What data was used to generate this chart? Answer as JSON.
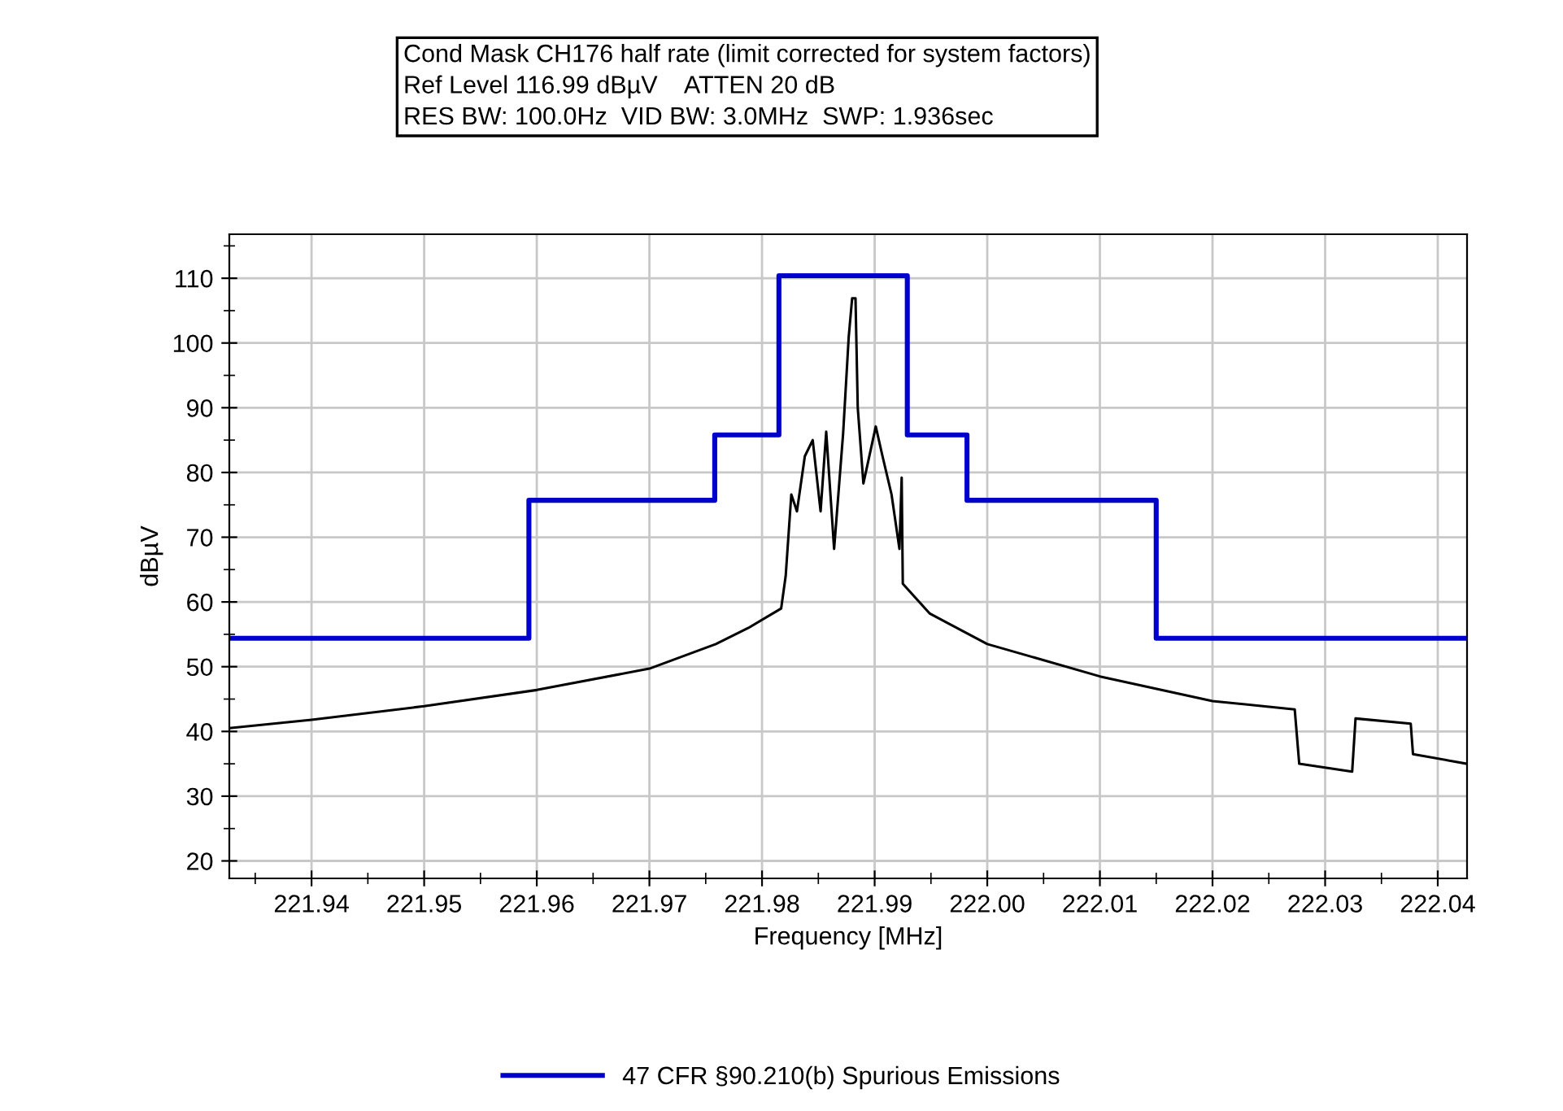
{
  "chart_data": {
    "type": "line",
    "title": "Cond Mask CH176 half rate (limit corrected for system factors)\nRef Level 116.99 dBµV    ATTEN 20 dB\nRES BW: 100.0Hz  VID BW: 3.0MHz  SWP: 1.936sec",
    "xlabel": "Frequency [MHz]",
    "ylabel": "dBµV",
    "xlim": [
      221.9327,
      222.0426
    ],
    "ylim": [
      17.3,
      116.8
    ],
    "xticks": [
      {
        "value": 221.94,
        "label": "221.94"
      },
      {
        "value": 221.95,
        "label": "221.95"
      },
      {
        "value": 221.96,
        "label": "221.96"
      },
      {
        "value": 221.97,
        "label": "221.97"
      },
      {
        "value": 221.98,
        "label": "221.98"
      },
      {
        "value": 221.99,
        "label": "221.99"
      },
      {
        "value": 222.0,
        "label": "222.00"
      },
      {
        "value": 222.01,
        "label": "222.01"
      },
      {
        "value": 222.02,
        "label": "222.02"
      },
      {
        "value": 222.03,
        "label": "222.03"
      },
      {
        "value": 222.04,
        "label": "222.04"
      }
    ],
    "yticks": [
      20,
      30,
      40,
      50,
      60,
      70,
      80,
      90,
      100,
      110
    ],
    "grid": true,
    "legend": "bottom",
    "series": [
      {
        "type": "step",
        "name": "47 CFR §90.210(b) Spurious Emissions",
        "color": "#0000cc",
        "x": [
          221.9327,
          221.9593,
          221.9758,
          221.9815,
          221.9929,
          221.9982,
          222.015,
          222.0426
        ],
        "values": [
          54.4,
          75.7,
          85.8,
          110.4,
          85.8,
          75.7,
          54.4,
          54.4
        ]
      },
      {
        "color": "#000000",
        "x": [
          221.9327,
          221.94,
          221.95,
          221.96,
          221.97,
          221.9759,
          221.9788,
          221.9817,
          221.9821,
          221.9826,
          221.9831,
          221.9838,
          221.9845,
          221.9852,
          221.9857,
          221.9864,
          221.9872,
          221.9877,
          221.988,
          221.9883,
          221.9885,
          221.989,
          221.9901,
          221.9907,
          221.9915,
          221.9922,
          221.9924,
          221.9925,
          221.9949,
          222.0,
          222.01,
          222.02,
          222.0273,
          222.0277,
          222.0324,
          222.0327,
          222.0376,
          222.0378,
          222.0426
        ],
        "values": [
          40.5,
          41.8,
          43.9,
          46.4,
          49.7,
          53.5,
          56,
          59,
          64,
          76.6,
          74,
          82.5,
          85,
          74,
          86.3,
          68.2,
          86,
          101,
          106.9,
          106.9,
          90,
          78.3,
          87.1,
          82.5,
          76.6,
          68.2,
          79.2,
          62.8,
          58.2,
          53.5,
          48.5,
          44.7,
          43.4,
          35,
          33.8,
          42,
          41.2,
          36.5,
          35
        ]
      }
    ]
  }
}
